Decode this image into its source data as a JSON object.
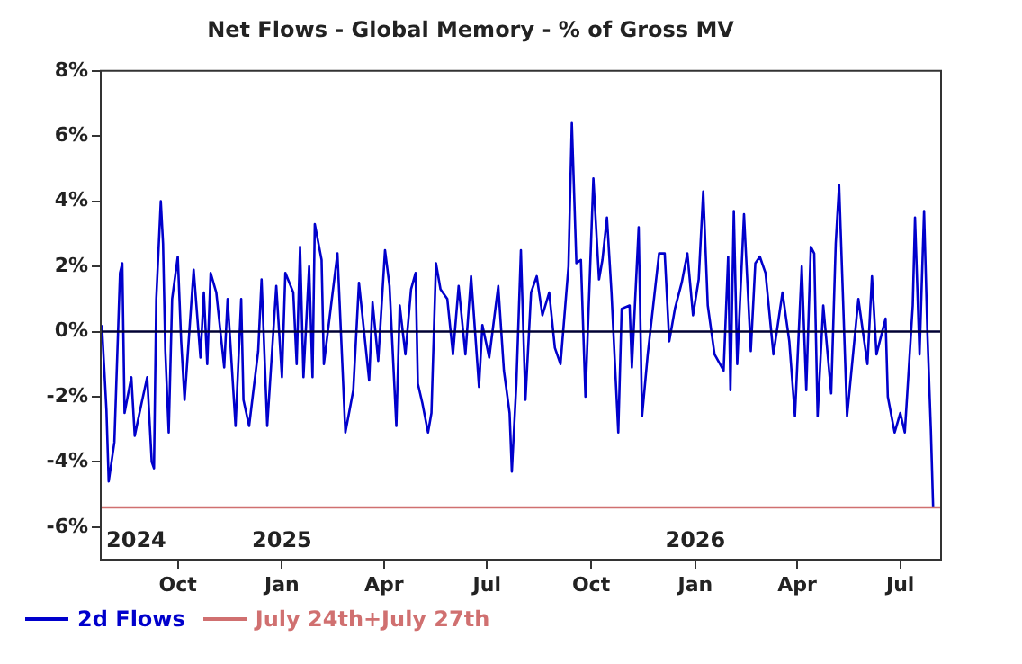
{
  "chart_data": {
    "type": "line",
    "title": "Net Flows - Global Memory - % of Gross MV",
    "x": [
      "2024-07-26",
      "2024-07-30",
      "2024-08-01",
      "2024-08-06",
      "2024-08-11",
      "2024-08-13",
      "2024-08-15",
      "2024-08-21",
      "2024-08-24",
      "2024-08-30",
      "2024-09-04",
      "2024-09-08",
      "2024-09-10",
      "2024-09-12",
      "2024-09-16",
      "2024-09-18",
      "2024-09-20",
      "2024-09-23",
      "2024-09-26",
      "2024-10-01",
      "2024-10-04",
      "2024-10-07",
      "2024-10-15",
      "2024-10-21",
      "2024-10-24",
      "2024-10-27",
      "2024-10-30",
      "2024-11-04",
      "2024-11-11",
      "2024-11-14",
      "2024-11-21",
      "2024-11-26",
      "2024-11-28",
      "2024-12-03",
      "2024-12-11",
      "2024-12-14",
      "2024-12-19",
      "2024-12-27",
      "2025-01-01",
      "2025-01-04",
      "2025-01-11",
      "2025-01-14",
      "2025-01-17",
      "2025-01-20",
      "2025-01-25",
      "2025-01-28",
      "2025-01-30",
      "2025-02-05",
      "2025-02-07",
      "2025-02-19",
      "2025-02-26",
      "2025-03-05",
      "2025-03-10",
      "2025-03-19",
      "2025-03-22",
      "2025-03-27",
      "2025-04-02",
      "2025-04-06",
      "2025-04-12",
      "2025-04-15",
      "2025-04-20",
      "2025-04-25",
      "2025-04-29",
      "2025-05-01",
      "2025-05-05",
      "2025-05-10",
      "2025-05-13",
      "2025-05-17",
      "2025-05-21",
      "2025-05-27",
      "2025-06-01",
      "2025-06-06",
      "2025-06-12",
      "2025-06-17",
      "2025-06-24",
      "2025-06-27",
      "2025-07-03",
      "2025-07-11",
      "2025-07-16",
      "2025-07-21",
      "2025-07-23",
      "2025-07-27",
      "2025-07-31",
      "2025-08-04",
      "2025-08-09",
      "2025-08-14",
      "2025-08-19",
      "2025-08-25",
      "2025-08-30",
      "2025-09-04",
      "2025-09-11",
      "2025-09-14",
      "2025-09-18",
      "2025-09-22",
      "2025-09-26",
      "2025-10-03",
      "2025-10-08",
      "2025-10-11",
      "2025-10-15",
      "2025-10-19",
      "2025-10-25",
      "2025-10-28",
      "2025-11-04",
      "2025-11-06",
      "2025-11-12",
      "2025-11-15",
      "2025-11-20",
      "2025-11-30",
      "2025-12-05",
      "2025-12-09",
      "2025-12-14",
      "2025-12-20",
      "2025-12-25",
      "2025-12-30",
      "2026-01-04",
      "2026-01-08",
      "2026-01-12",
      "2026-01-18",
      "2026-01-26",
      "2026-01-30",
      "2026-02-01",
      "2026-02-04",
      "2026-02-07",
      "2026-02-13",
      "2026-02-19",
      "2026-02-23",
      "2026-02-27",
      "2026-03-04",
      "2026-03-11",
      "2026-03-19",
      "2026-03-25",
      "2026-03-30",
      "2026-04-05",
      "2026-04-09",
      "2026-04-13",
      "2026-04-16",
      "2026-04-19",
      "2026-04-24",
      "2026-05-01",
      "2026-05-05",
      "2026-05-08",
      "2026-05-15",
      "2026-05-25",
      "2026-06-02",
      "2026-06-06",
      "2026-06-10",
      "2026-06-18",
      "2026-06-20",
      "2026-06-26",
      "2026-07-01",
      "2026-07-05",
      "2026-07-12",
      "2026-07-14",
      "2026-07-18",
      "2026-07-22",
      "2026-07-25",
      "2026-07-28",
      "2026-07-30"
    ],
    "series": [
      {
        "name": "2d Flows",
        "color": "#0000cc",
        "values": [
          0.2,
          -2.4,
          -4.6,
          -3.4,
          1.8,
          2.1,
          -2.5,
          -1.4,
          -3.2,
          -2.2,
          -1.4,
          -4.0,
          -4.2,
          1.0,
          4.0,
          2.7,
          -0.6,
          -3.1,
          1.0,
          2.3,
          -0.3,
          -2.1,
          1.9,
          -0.8,
          1.2,
          -1.0,
          1.8,
          1.2,
          -1.1,
          1.0,
          -2.9,
          1.0,
          -2.1,
          -2.9,
          -0.6,
          1.6,
          -2.9,
          1.4,
          -1.4,
          1.8,
          1.2,
          -1.0,
          2.6,
          -1.4,
          2.0,
          -1.4,
          3.3,
          2.2,
          -1.0,
          2.4,
          -3.1,
          -1.8,
          1.5,
          -1.5,
          0.9,
          -0.9,
          2.5,
          1.4,
          -2.9,
          0.8,
          -0.7,
          1.3,
          1.8,
          -1.6,
          -2.2,
          -3.1,
          -2.5,
          2.1,
          1.3,
          1.0,
          -0.7,
          1.4,
          -0.7,
          1.7,
          -1.7,
          0.2,
          -0.8,
          1.4,
          -1.2,
          -2.5,
          -4.3,
          -1.6,
          2.5,
          -2.1,
          1.2,
          1.7,
          0.5,
          1.2,
          -0.5,
          -1.0,
          2.0,
          6.4,
          2.1,
          2.2,
          -2.0,
          4.7,
          1.6,
          2.2,
          3.5,
          1.2,
          -3.1,
          0.7,
          0.8,
          -1.1,
          3.2,
          -2.6,
          -0.7,
          2.4,
          2.4,
          -0.3,
          0.7,
          1.5,
          2.4,
          0.5,
          1.6,
          4.3,
          0.8,
          -0.7,
          -1.2,
          2.3,
          -1.8,
          3.7,
          -1.0,
          3.6,
          -0.6,
          2.1,
          2.3,
          1.8,
          -0.7,
          1.2,
          -0.3,
          -2.6,
          2.0,
          -1.8,
          2.6,
          2.4,
          -2.6,
          0.8,
          -1.9,
          2.7,
          4.5,
          -2.6,
          1.0,
          -1.0,
          1.7,
          -0.7,
          0.4,
          -2.0,
          -3.1,
          -2.5,
          -3.1,
          0.8,
          3.5,
          -0.7,
          3.7,
          -0.1,
          -3.0,
          -5.4
        ]
      }
    ],
    "xlim": [
      "2024-07-25",
      "2026-08-06"
    ],
    "xticks": [
      {
        "value": "2024-10-01",
        "label": "Oct"
      },
      {
        "value": "2025-01-01",
        "label": "Jan"
      },
      {
        "value": "2025-04-01",
        "label": "Apr"
      },
      {
        "value": "2025-07-01",
        "label": "Jul"
      },
      {
        "value": "2025-10-01",
        "label": "Oct"
      },
      {
        "value": "2026-01-01",
        "label": "Jan"
      },
      {
        "value": "2026-04-01",
        "label": "Apr"
      },
      {
        "value": "2026-07-01",
        "label": "Jul"
      }
    ],
    "ylim": [
      -7,
      8
    ],
    "yticks": [
      {
        "value": -6,
        "label": "-6%"
      },
      {
        "value": -4,
        "label": "-4%"
      },
      {
        "value": -2,
        "label": "-2%"
      },
      {
        "value": 0,
        "label": "0%"
      },
      {
        "value": 2,
        "label": "2%"
      },
      {
        "value": 4,
        "label": "4%"
      },
      {
        "value": 6,
        "label": "6%"
      },
      {
        "value": 8,
        "label": "8%"
      }
    ],
    "ref_lines": [
      {
        "axis": "y",
        "value": 0,
        "color": "#000033"
      },
      {
        "axis": "y",
        "value": -5.4,
        "label": "July 24th+July 27th",
        "color": "#d07070"
      }
    ],
    "annotations": [
      "2024",
      "2025",
      "2026"
    ],
    "legend": "bottom left",
    "marker": "none",
    "line_style": "solid",
    "grid": false
  }
}
